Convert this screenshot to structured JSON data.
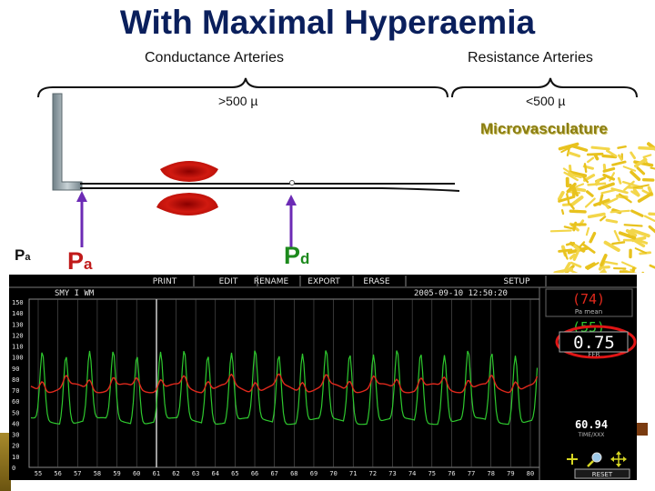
{
  "slide": {
    "title": "With Maximal Hyperaemia",
    "conductance_label": "Conductance Arteries",
    "resistance_label": "Resistance Arteries",
    "conductance_diameter": ">500 µ",
    "resistance_diameter": "<500 µ",
    "microvasculature_label": "Microvasculature",
    "pa_small": {
      "main": "P",
      "sub": "a"
    },
    "pa_big": {
      "main": "P",
      "sub": "a"
    },
    "pd_big": {
      "main": "P",
      "sub": "d"
    }
  },
  "monitor": {
    "menu": [
      "PRINT",
      "EDIT",
      "RENAME",
      "EXPORT",
      "ERASE",
      "SETUP"
    ],
    "header_left": "SMY I WM",
    "header_right": "2005-09-10 12:50:20",
    "y_ticks": [
      "150",
      "140",
      "130",
      "120",
      "110",
      "100",
      "90",
      "80",
      "70",
      "60",
      "50",
      "40",
      "30",
      "20",
      "10",
      "0"
    ],
    "x_ticks": [
      "55",
      "56",
      "57",
      "58",
      "59",
      "60",
      "61",
      "62",
      "63",
      "64",
      "65",
      "66",
      "67",
      "68",
      "69",
      "70",
      "71",
      "72",
      "73",
      "74",
      "75",
      "76",
      "77",
      "78",
      "79",
      "80"
    ],
    "readouts": {
      "pa_mean": "(74)",
      "pa_mean_label": "Pa mean",
      "pd_mean": "(55)",
      "ffr": "0.75",
      "ffr_label": "FFR",
      "time": "60.94",
      "time_label": "TIME/XXX",
      "reset_label": "RESET",
      "tool_icons": [
        "plus-icon",
        "magnifier-icon",
        "move-arrows-icon"
      ]
    },
    "colors": {
      "pa_trace": "#e0291c",
      "pd_trace": "#2ec82e",
      "ffr_ring": "#e01515"
    }
  }
}
